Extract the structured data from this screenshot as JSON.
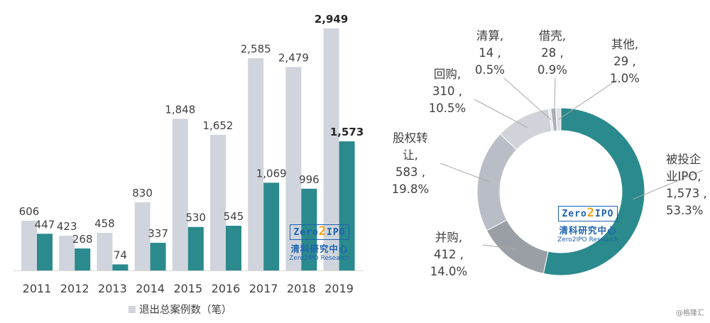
{
  "chart_data": [
    {
      "type": "bar",
      "categories": [
        "2011",
        "2012",
        "2013",
        "2014",
        "2015",
        "2016",
        "2017",
        "2018",
        "2019"
      ],
      "series": [
        {
          "name": "退出总案例数（笔）",
          "values": [
            606,
            423,
            458,
            830,
            1848,
            1652,
            2585,
            2479,
            2949
          ],
          "color": "#d0d5dd"
        },
        {
          "values": [
            447,
            268,
            74,
            337,
            530,
            545,
            1069,
            996,
            1573
          ],
          "color": "#2b8a8d"
        }
      ],
      "value_labels": [
        [
          "606",
          "423",
          "458",
          "830",
          "1,848",
          "1,652",
          "2,585",
          "2,479",
          "2,949"
        ],
        [
          "447",
          "268",
          "74",
          "337",
          "530",
          "545",
          "1,069",
          "996",
          "1,573"
        ]
      ],
      "ylim": [
        0,
        3000
      ],
      "legend": "bottom",
      "grid": false
    },
    {
      "type": "pie",
      "donut": true,
      "slices": [
        {
          "label": "被投企业IPO",
          "value": 1573,
          "value_label": "1,573",
          "percent": "53.3%",
          "color": "#2b8a8d"
        },
        {
          "label": "并购",
          "value": 412,
          "value_label": "412",
          "percent": "14.0%",
          "color": "#9a9fa6"
        },
        {
          "label": "股权转让",
          "value": 583,
          "value_label": "583",
          "percent": "19.8%",
          "color": "#b9bec6"
        },
        {
          "label": "回购",
          "value": 310,
          "value_label": "310",
          "percent": "10.5%",
          "color": "#d0d4da"
        },
        {
          "label": "清算",
          "value": 14,
          "value_label": "14",
          "percent": "0.5%",
          "color": "#e6e9ec"
        },
        {
          "label": "借壳",
          "value": 28,
          "value_label": "28",
          "percent": "0.9%",
          "color": "#aab0b8"
        },
        {
          "label": "其他",
          "value": 29,
          "value_label": "29",
          "percent": "1.0%",
          "color": "#dcdfe3"
        }
      ],
      "label_lines": [
        [
          "被投企",
          "业IPO,",
          "1,573 ,",
          "53.3%"
        ],
        [
          "并购,",
          "412 ,",
          "14.0%"
        ],
        [
          "股权转",
          "让,",
          "583 ,",
          "19.8%"
        ],
        [
          "回购,",
          "310 ,",
          "10.5%"
        ],
        [
          "清算,",
          "14 ,",
          "0.5%"
        ],
        [
          "借壳,",
          "28 ,",
          "0.9%"
        ],
        [
          "其他,",
          "29 ,",
          "1.0%"
        ]
      ]
    }
  ],
  "logo": {
    "top_a": "Zero",
    "top_two": "2",
    "top_b": "IPO",
    "cn": "清科研究中心",
    "en": "Zero2IPO Research"
  },
  "watermark": "@格隆汇",
  "colors": {
    "bar_total": "#d0d5dd",
    "bar_ipo": "#2b8a8d",
    "text": "#404040"
  }
}
